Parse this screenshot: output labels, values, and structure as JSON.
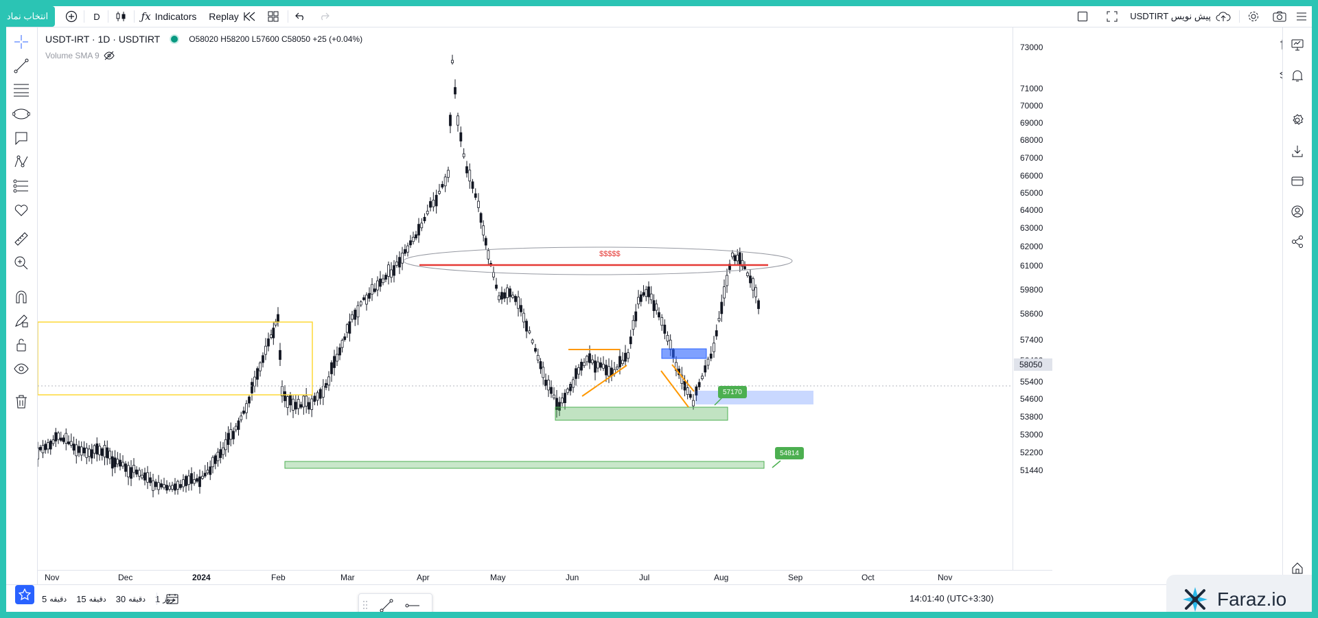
{
  "topbar": {
    "symbol_search_label": "انتخاب نماد",
    "interval": "D",
    "indicators_label": "Indicators",
    "replay_label": "Replay",
    "ticker_label": "USDTIRT پیش نویس",
    "icons": [
      "plus-circle-icon",
      "candles-icon",
      "indicators-icon",
      "replay-icon",
      "layouts-icon",
      "undo-icon",
      "redo-icon",
      "square-icon",
      "fullscreen-icon",
      "cloud-upload-icon",
      "gear-icon",
      "camera-icon",
      "menu-icon"
    ]
  },
  "legend": {
    "symbol": "USDT-IRT · 1D · USDTIRT",
    "ohlc": "O58020 H58200 L57600 C58050 +25 (+0.04%)",
    "indicator": "Volume SMA 9"
  },
  "price_axis": {
    "labels": [
      "73000",
      "71000",
      "70000",
      "69000",
      "68000",
      "67000",
      "66000",
      "65000",
      "64000",
      "63000",
      "62000",
      "61000",
      "59800",
      "58600",
      "57400",
      "56400",
      "55400",
      "54600",
      "53800",
      "53000",
      "52200",
      "51440"
    ],
    "last_price": "58050"
  },
  "time_axis": {
    "labels": [
      "Nov",
      "Dec",
      "2024",
      "Feb",
      "Mar",
      "Apr",
      "May",
      "Jun",
      "Jul",
      "Aug",
      "Sep",
      "Oct",
      "Nov"
    ]
  },
  "annotations": {
    "resistance_text": "$$$$$",
    "bubble_1": "57170",
    "bubble_2": "54814"
  },
  "bottombar": {
    "intervals": [
      {
        "num": "5",
        "unit": "دقیقه"
      },
      {
        "num": "15",
        "unit": "دقیقه"
      },
      {
        "num": "30",
        "unit": "دقیقه"
      },
      {
        "num": "1",
        "unit": "روز"
      }
    ],
    "clock": "14:01:40 (UTC+3:30)"
  },
  "watermark": {
    "brand": "Faraz.io"
  },
  "colors": {
    "accent": "#2bc4b4",
    "up": "#131722",
    "resistance": "#e53935",
    "zone_green": "#4caf50",
    "zone_blue": "#2962ff",
    "box_yellow": "#fdd835",
    "trend_orange": "#ff9800"
  }
}
